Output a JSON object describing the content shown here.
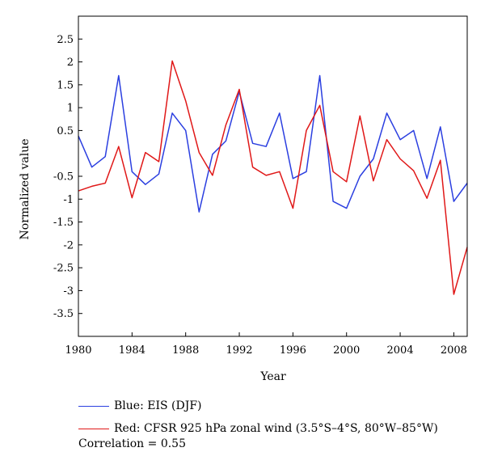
{
  "chart_data": {
    "type": "line",
    "xlabel": "Year",
    "ylabel": "Normalized value",
    "xlim": [
      1980,
      2009
    ],
    "ylim": [
      -4.0,
      3.0
    ],
    "x_ticks": [
      "1980",
      "1984",
      "1988",
      "1992",
      "1996",
      "2000",
      "2004",
      "2008"
    ],
    "y_ticks": [
      "2.5",
      "2",
      "1.5",
      "1",
      "0.5",
      "-0.5",
      "-1",
      "-1.5",
      "-2",
      "-2.5",
      "-3",
      "-3.5"
    ],
    "x": [
      1980,
      1981,
      1982,
      1983,
      1984,
      1985,
      1986,
      1987,
      1988,
      1989,
      1990,
      1991,
      1992,
      1993,
      1994,
      1995,
      1996,
      1997,
      1998,
      1999,
      2000,
      2001,
      2002,
      2003,
      2004,
      2005,
      2006,
      2007,
      2008,
      2009
    ],
    "series": [
      {
        "name": "Blue: EIS (DJF)",
        "color": "#2b3fe0",
        "values": [
          0.38,
          -0.3,
          -0.07,
          1.7,
          -0.4,
          -0.68,
          -0.45,
          0.88,
          0.5,
          -1.28,
          -0.02,
          0.27,
          1.35,
          0.22,
          0.15,
          0.88,
          -0.55,
          -0.4,
          1.7,
          -1.05,
          -1.2,
          -0.5,
          -0.12,
          0.88,
          0.3,
          0.5,
          -0.55,
          0.58,
          -1.05,
          -0.65
        ]
      },
      {
        "name": "Red: CFSR 925 hPa zonal wind (3.5°S–4°S, 80°W–85°W)",
        "color": "#e01818",
        "values": [
          -0.82,
          -0.72,
          -0.65,
          0.15,
          -0.97,
          0.02,
          -0.18,
          2.02,
          1.15,
          0.02,
          -0.48,
          0.62,
          1.4,
          -0.3,
          -0.48,
          -0.4,
          -1.2,
          0.5,
          1.05,
          -0.4,
          -0.62,
          0.82,
          -0.6,
          0.3,
          -0.12,
          -0.38,
          -0.98,
          -0.15,
          -3.08,
          -2.05
        ]
      }
    ]
  },
  "correlation_text": "Correlation = 0.55"
}
